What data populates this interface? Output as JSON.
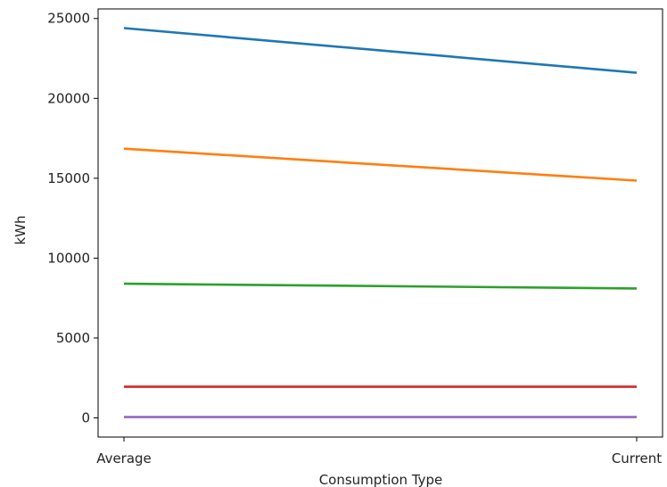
{
  "chart_data": {
    "type": "line",
    "categories": [
      "Average",
      "Current"
    ],
    "series": [
      {
        "values": [
          24400,
          21600
        ],
        "color": "#1f77b4"
      },
      {
        "values": [
          16850,
          14850
        ],
        "color": "#ff7f0e"
      },
      {
        "values": [
          8400,
          8100
        ],
        "color": "#2ca02c"
      },
      {
        "values": [
          1950,
          1950
        ],
        "color": "#d62728"
      },
      {
        "values": [
          50,
          50
        ],
        "color": "#9467bd"
      }
    ],
    "title": "",
    "xlabel": "Consumption Type",
    "ylabel": "kWh",
    "ylim": [
      -1200,
      25600
    ],
    "yticks": [
      0,
      5000,
      10000,
      15000,
      20000,
      25000
    ],
    "grid": false,
    "legend": "none"
  }
}
